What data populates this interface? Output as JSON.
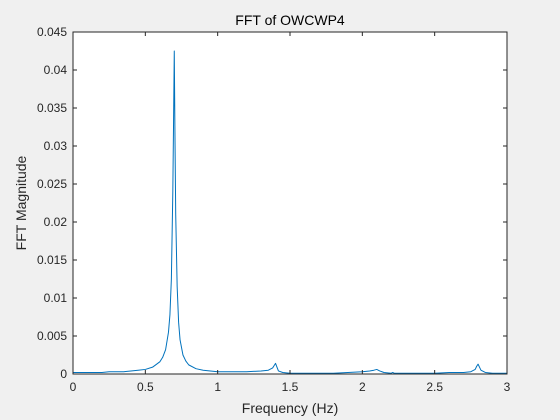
{
  "chart_data": {
    "type": "line",
    "title": "FFT of OWCWP4",
    "xlabel": "Frequency (Hz)",
    "ylabel": "FFT Magnitude",
    "xlim": [
      0,
      3
    ],
    "ylim": [
      0,
      0.045
    ],
    "xticks": [
      0,
      0.5,
      1,
      1.5,
      2,
      2.5,
      3
    ],
    "xtick_labels": [
      "0",
      "0.5",
      "1",
      "1.5",
      "2",
      "2.5",
      "3"
    ],
    "yticks": [
      0,
      0.005,
      0.01,
      0.015,
      0.02,
      0.025,
      0.03,
      0.035,
      0.04,
      0.045
    ],
    "ytick_labels": [
      "0",
      "0.005",
      "0.01",
      "0.015",
      "0.02",
      "0.025",
      "0.03",
      "0.035",
      "0.04",
      "0.045"
    ],
    "grid": false,
    "box": true,
    "line_color": "#0072bd",
    "series": [
      {
        "x": [
          0,
          0.05,
          0.1,
          0.15,
          0.2,
          0.25,
          0.3,
          0.35,
          0.4,
          0.45,
          0.5,
          0.55,
          0.6,
          0.62,
          0.64,
          0.66,
          0.67,
          0.68,
          0.69,
          0.695,
          0.7,
          0.705,
          0.71,
          0.72,
          0.73,
          0.74,
          0.76,
          0.78,
          0.8,
          0.85,
          0.9,
          1.0,
          1.1,
          1.2,
          1.3,
          1.35,
          1.38,
          1.39,
          1.4,
          1.41,
          1.42,
          1.45,
          1.5,
          1.6,
          1.7,
          1.8,
          1.9,
          2.0,
          2.05,
          2.08,
          2.1,
          2.12,
          2.15,
          2.2,
          2.21,
          2.22,
          2.3,
          2.4,
          2.5,
          2.6,
          2.7,
          2.75,
          2.78,
          2.79,
          2.8,
          2.81,
          2.82,
          2.85,
          2.9,
          2.95,
          3.0
        ],
        "y": [
          0.0002,
          0.0002,
          0.0002,
          0.0002,
          0.0002,
          0.0003,
          0.0003,
          0.0003,
          0.0004,
          0.0005,
          0.0006,
          0.0009,
          0.0016,
          0.0022,
          0.0032,
          0.0055,
          0.0078,
          0.0125,
          0.024,
          0.033,
          0.0425,
          0.031,
          0.021,
          0.0115,
          0.0068,
          0.0045,
          0.0025,
          0.0017,
          0.0012,
          0.0007,
          0.0005,
          0.0003,
          0.0003,
          0.0003,
          0.0004,
          0.0005,
          0.0008,
          0.0011,
          0.0014,
          0.0009,
          0.0004,
          0.0002,
          0.0001,
          0.0001,
          0.0001,
          0.0001,
          0.0002,
          0.0003,
          0.0004,
          0.0005,
          0.0006,
          0.0004,
          0.0002,
          0.0001,
          0.0002,
          0.0001,
          0.0001,
          0.0001,
          0.0001,
          0.0002,
          0.0002,
          0.0003,
          0.0006,
          0.001,
          0.0013,
          0.0009,
          0.0005,
          0.0002,
          0.0001,
          0.0001,
          0.0001
        ]
      }
    ]
  },
  "colors": {
    "figure_background": "#f0f0f0",
    "axes_background": "#ffffff",
    "axes_edge": "#262626",
    "line": "#0072bd"
  }
}
